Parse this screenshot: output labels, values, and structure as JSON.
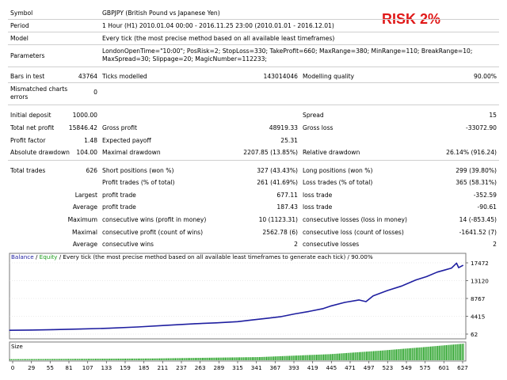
{
  "risk_label": "RISK 2%",
  "header": [
    {
      "label": "Symbol",
      "value": "GBPJPY (British Pound vs Japanese Yen)"
    },
    {
      "label": "Period",
      "value": "1 Hour (H1) 2010.01.04 00:00 - 2016.11.25 23:00 (2010.01.01 - 2016.12.01)"
    },
    {
      "label": "Model",
      "value": "Every tick (the most precise method based on all available least timeframes)"
    },
    {
      "label": "Parameters",
      "value": "LondonOpenTime=\"10:00\"; PosRisk=2; StopLoss=330; TakeProfit=660; MaxRange=380; MinRange=110; BreakRange=10;",
      "value2": "MaxSpread=30; Slippage=20; MagicNumber=112233;"
    }
  ],
  "bars": {
    "label": "Bars in test",
    "value": "43764",
    "ticks_label": "Ticks modelled",
    "ticks_value": "143014046",
    "quality_label": "Modelling quality",
    "quality_value": "90.00%"
  },
  "mismatch": {
    "label1": "Mismatched charts",
    "label2": "errors",
    "value": "0"
  },
  "stats": {
    "initial_deposit": {
      "label": "Initial deposit",
      "value": "1000.00"
    },
    "spread": {
      "label": "Spread",
      "value": "15"
    },
    "net_profit": {
      "label": "Total net profit",
      "value": "15846.42"
    },
    "gross_profit": {
      "label": "Gross profit",
      "value": "48919.33"
    },
    "gross_loss": {
      "label": "Gross loss",
      "value": "-33072.90"
    },
    "profit_factor": {
      "label": "Profit factor",
      "value": "1.48"
    },
    "expected_payoff": {
      "label": "Expected payoff",
      "value": "25.31"
    },
    "abs_drawdown": {
      "label": "Absolute drawdown",
      "value": "104.00"
    },
    "max_drawdown": {
      "label": "Maximal drawdown",
      "value": "2207.85 (13.85%)"
    },
    "rel_drawdown": {
      "label": "Relative drawdown",
      "value": "26.14% (916.24)"
    },
    "total_trades": {
      "label": "Total trades",
      "value": "626"
    },
    "short_positions": {
      "label": "Short positions (won %)",
      "value": "327 (43.43%)"
    },
    "long_positions": {
      "label": "Long positions (won %)",
      "value": "299 (39.80%)"
    },
    "profit_trades": {
      "label": "Profit trades (% of total)",
      "value": "261 (41.69%)"
    },
    "loss_trades": {
      "label": "Loss trades (% of total)",
      "value": "365 (58.31%)"
    }
  },
  "detail_rows": [
    {
      "prefix": "Largest",
      "label1": "profit trade",
      "value1": "677.11",
      "label2": "loss trade",
      "value2": "-352.59"
    },
    {
      "prefix": "Average",
      "label1": "profit trade",
      "value1": "187.43",
      "label2": "loss trade",
      "value2": "-90.61"
    },
    {
      "prefix": "Maximum",
      "label1": "consecutive wins (profit in money)",
      "value1": "10 (1123.31)",
      "label2": "consecutive losses (loss in money)",
      "value2": "14 (-853.45)"
    },
    {
      "prefix": "Maximal",
      "label1": "consecutive profit (count of wins)",
      "value1": "2562.78 (6)",
      "label2": "consecutive loss (count of losses)",
      "value2": "-1641.52 (7)"
    },
    {
      "prefix": "Average",
      "label1": "consecutive wins",
      "value1": "2",
      "label2": "consecutive losses",
      "value2": "2"
    }
  ],
  "chart_data": {
    "type": "line",
    "legend_balance": "Balance",
    "legend_sep": " / ",
    "legend_equity": "Equity",
    "legend_rest": " / Every tick (the most precise method based on all available least timeframes to generate each tick) / 90.00%",
    "size_label": "Size",
    "y_ticks": [
      "17472",
      "13120",
      "8767",
      "4415",
      "62"
    ],
    "y_tick_values": [
      17472,
      13120,
      8767,
      4415,
      62
    ],
    "ylim": [
      62,
      17472
    ],
    "x_ticks": [
      "0",
      "29",
      "55",
      "81",
      "107",
      "133",
      "159",
      "185",
      "211",
      "237",
      "263",
      "289",
      "315",
      "341",
      "367",
      "393",
      "419",
      "445",
      "471",
      "497",
      "523",
      "549",
      "575",
      "601",
      "627"
    ],
    "xlim": [
      0,
      640
    ],
    "balance_color": "#1f1fa0",
    "equity_color": "#1a9a1a",
    "size_color": "#22a022",
    "series": [
      {
        "name": "Balance",
        "x": [
          0,
          30,
          60,
          100,
          140,
          180,
          220,
          260,
          290,
          320,
          340,
          360,
          380,
          400,
          420,
          440,
          450,
          470,
          490,
          500,
          510,
          530,
          550,
          570,
          585,
          600,
          610,
          620,
          627,
          630,
          636
        ],
        "values": [
          1000,
          1050,
          1150,
          1300,
          1500,
          1800,
          2200,
          2600,
          2800,
          3100,
          3500,
          3900,
          4300,
          5000,
          5600,
          6300,
          6900,
          7800,
          8400,
          8000,
          9400,
          10700,
          11800,
          13300,
          14100,
          15200,
          15700,
          16200,
          17400,
          16300,
          16850
        ]
      }
    ],
    "size_profile": [
      {
        "x": 0,
        "level": 0.06
      },
      {
        "x": 200,
        "level": 0.1
      },
      {
        "x": 350,
        "level": 0.18
      },
      {
        "x": 450,
        "level": 0.35
      },
      {
        "x": 520,
        "level": 0.55
      },
      {
        "x": 580,
        "level": 0.75
      },
      {
        "x": 636,
        "level": 0.95
      }
    ]
  }
}
